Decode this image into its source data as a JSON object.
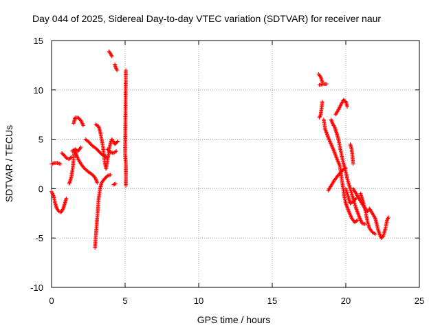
{
  "chart_data": {
    "type": "scatter",
    "title": "Day 044 of 2025, Sidereal Day-to-day VTEC variation (SDTVAR) for receiver naur",
    "xlabel": "GPS time / hours",
    "ylabel": "SDTVAR / TECUs",
    "xlim": [
      0,
      25
    ],
    "ylim": [
      -10,
      15
    ],
    "xticks": [
      0,
      5,
      10,
      15,
      20,
      25
    ],
    "yticks": [
      -10,
      -5,
      0,
      5,
      10,
      15
    ],
    "xtick_labels": [
      "0",
      "5",
      "10",
      "15",
      "20",
      "25"
    ],
    "ytick_labels": [
      "-10",
      "-5",
      "0",
      "5",
      "10",
      "15"
    ],
    "grid": true,
    "marker": "+",
    "color": "#ff0000",
    "series": [
      {
        "name": "SDTVAR",
        "tracks": [
          [
            [
              0.0,
              2.5
            ],
            [
              0.2,
              2.6
            ],
            [
              0.4,
              2.6
            ],
            [
              0.6,
              2.5
            ]
          ],
          [
            [
              0.0,
              -0.3
            ],
            [
              0.15,
              -0.8
            ],
            [
              0.25,
              -1.5
            ],
            [
              0.35,
              -2.0
            ],
            [
              0.5,
              -2.3
            ],
            [
              0.65,
              -2.4
            ],
            [
              0.8,
              -2.0
            ],
            [
              0.9,
              -1.5
            ],
            [
              1.0,
              -1.0
            ]
          ],
          [
            [
              0.7,
              3.6
            ],
            [
              0.9,
              3.3
            ],
            [
              1.0,
              3.1
            ],
            [
              1.2,
              3.0
            ],
            [
              1.35,
              3.2
            ]
          ],
          [
            [
              1.2,
              0.5
            ],
            [
              1.35,
              1.2
            ],
            [
              1.45,
              2.2
            ],
            [
              1.5,
              3.0
            ],
            [
              1.55,
              3.8
            ]
          ],
          [
            [
              1.4,
              3.8
            ],
            [
              1.6,
              4.0
            ],
            [
              1.8,
              3.8
            ],
            [
              2.0,
              4.2
            ]
          ],
          [
            [
              1.5,
              6.6
            ],
            [
              1.6,
              7.2
            ],
            [
              1.8,
              7.2
            ],
            [
              2.0,
              6.9
            ],
            [
              2.15,
              6.4
            ]
          ],
          [
            [
              1.6,
              3.8
            ],
            [
              1.8,
              3.0
            ],
            [
              2.0,
              2.5
            ],
            [
              2.2,
              2.1
            ],
            [
              2.5,
              1.7
            ],
            [
              2.7,
              1.5
            ],
            [
              2.85,
              1.3
            ],
            [
              3.0,
              1.0
            ],
            [
              3.1,
              0.6
            ]
          ],
          [
            [
              2.3,
              5.0
            ],
            [
              2.55,
              4.7
            ],
            [
              2.8,
              4.3
            ],
            [
              3.0,
              4.1
            ],
            [
              3.2,
              3.8
            ],
            [
              3.4,
              3.5
            ],
            [
              3.6,
              3.3
            ],
            [
              3.75,
              3.2
            ]
          ],
          [
            [
              2.95,
              -6.0
            ],
            [
              3.0,
              -5.0
            ],
            [
              3.05,
              -4.0
            ],
            [
              3.1,
              -3.0
            ],
            [
              3.15,
              -2.0
            ],
            [
              3.2,
              -1.0
            ],
            [
              3.3,
              0.0
            ],
            [
              3.4,
              0.6
            ],
            [
              3.6,
              1.0
            ],
            [
              3.8,
              1.3
            ],
            [
              4.0,
              1.4
            ]
          ],
          [
            [
              3.0,
              6.5
            ],
            [
              3.2,
              6.3
            ],
            [
              3.3,
              5.8
            ],
            [
              3.4,
              5.0
            ],
            [
              3.5,
              4.2
            ],
            [
              3.55,
              3.5
            ]
          ],
          [
            [
              3.55,
              3.5
            ],
            [
              3.6,
              2.8
            ],
            [
              3.7,
              2.0
            ],
            [
              3.8,
              2.8
            ],
            [
              3.9,
              3.8
            ],
            [
              4.0,
              4.6
            ],
            [
              4.1,
              5.0
            ],
            [
              4.2,
              4.8
            ],
            [
              4.3,
              4.5
            ],
            [
              4.5,
              4.8
            ]
          ],
          [
            [
              3.8,
              4.0
            ],
            [
              4.0,
              3.7
            ],
            [
              4.2,
              3.6
            ],
            [
              4.4,
              3.8
            ]
          ],
          [
            [
              4.2,
              0.4
            ],
            [
              4.35,
              0.5
            ]
          ],
          [
            [
              3.9,
              13.9
            ],
            [
              4.0,
              13.7
            ],
            [
              4.1,
              13.4
            ]
          ],
          [
            [
              4.3,
              12.6
            ],
            [
              4.35,
              12.3
            ],
            [
              4.45,
              12.0
            ]
          ],
          [
            [
              5.05,
              12.0
            ],
            [
              5.0,
              3.5
            ],
            [
              5.05,
              2.5
            ],
            [
              5.05,
              0.3
            ]
          ],
          [
            [
              18.2,
              7.2
            ],
            [
              18.3,
              7.5
            ],
            [
              18.4,
              8.8
            ]
          ],
          [
            [
              18.15,
              11.6
            ],
            [
              18.3,
              11.3
            ],
            [
              18.4,
              10.8
            ]
          ],
          [
            [
              18.2,
              10.5
            ],
            [
              18.5,
              10.6
            ],
            [
              18.7,
              10.6
            ]
          ],
          [
            [
              18.5,
              7.0
            ],
            [
              18.6,
              6.0
            ],
            [
              18.8,
              5.2
            ],
            [
              19.0,
              4.5
            ],
            [
              19.2,
              3.8
            ],
            [
              19.4,
              3.0
            ],
            [
              19.6,
              2.3
            ],
            [
              19.7,
              1.2
            ],
            [
              19.8,
              0.2
            ],
            [
              19.9,
              -0.8
            ],
            [
              20.0,
              -1.5
            ],
            [
              20.2,
              -2.3
            ],
            [
              20.4,
              -3.0
            ],
            [
              20.6,
              -3.4
            ],
            [
              20.8,
              -3.2
            ]
          ],
          [
            [
              19.0,
              7.0
            ],
            [
              19.1,
              6.6
            ],
            [
              19.25,
              6.2
            ],
            [
              19.4,
              5.5
            ],
            [
              19.5,
              5.0
            ],
            [
              19.6,
              4.2
            ],
            [
              19.7,
              3.5
            ],
            [
              19.8,
              2.8
            ],
            [
              19.95,
              2.0
            ],
            [
              20.1,
              1.0
            ],
            [
              20.3,
              0.0
            ],
            [
              20.5,
              -1.0
            ],
            [
              20.7,
              -2.0
            ],
            [
              20.9,
              -2.8
            ],
            [
              21.1,
              -3.5
            ],
            [
              21.3,
              -3.6
            ]
          ],
          [
            [
              18.8,
              -0.2
            ],
            [
              19.0,
              0.3
            ],
            [
              19.2,
              0.8
            ],
            [
              19.5,
              1.4
            ],
            [
              19.8,
              1.9
            ],
            [
              20.0,
              2.1
            ]
          ],
          [
            [
              19.3,
              7.5
            ],
            [
              19.5,
              8.0
            ],
            [
              19.7,
              8.6
            ],
            [
              19.85,
              9.0
            ],
            [
              20.0,
              8.8
            ],
            [
              20.1,
              8.3
            ]
          ],
          [
            [
              20.0,
              0.0
            ],
            [
              20.2,
              -1.0
            ],
            [
              20.3,
              -1.5
            ],
            [
              20.5,
              -1.3
            ],
            [
              20.7,
              -1.0
            ]
          ],
          [
            [
              20.3,
              4.5
            ],
            [
              20.4,
              4.0
            ],
            [
              20.45,
              3.3
            ],
            [
              20.5,
              2.5
            ]
          ],
          [
            [
              20.5,
              0.0
            ],
            [
              20.7,
              -0.5
            ],
            [
              20.9,
              -1.0
            ],
            [
              21.1,
              -1.5
            ],
            [
              21.3,
              -2.0
            ],
            [
              21.5,
              -2.3
            ]
          ],
          [
            [
              21.0,
              -0.5
            ],
            [
              21.15,
              -1.2
            ],
            [
              21.3,
              -2.0
            ],
            [
              21.4,
              -2.8
            ],
            [
              21.5,
              -3.5
            ],
            [
              21.6,
              -4.0
            ],
            [
              21.8,
              -4.4
            ],
            [
              22.0,
              -4.6
            ]
          ],
          [
            [
              21.6,
              -2.0
            ],
            [
              21.8,
              -2.5
            ],
            [
              22.0,
              -3.0
            ],
            [
              22.2,
              -4.2
            ],
            [
              22.4,
              -5.0
            ],
            [
              22.55,
              -4.8
            ],
            [
              22.7,
              -4.0
            ],
            [
              22.8,
              -3.2
            ],
            [
              22.9,
              -2.9
            ]
          ]
        ]
      }
    ]
  }
}
